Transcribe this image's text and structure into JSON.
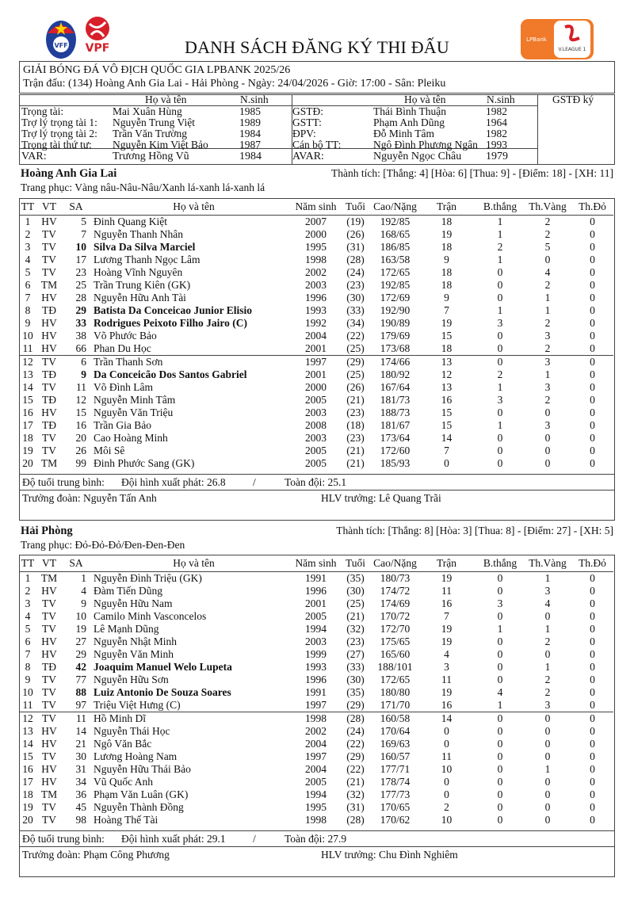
{
  "logos": {
    "left": [
      "VFF",
      "VPF"
    ],
    "right": "V.League 1 LPBank"
  },
  "colors": {
    "vff_blue": "#1f3f9a",
    "vpf_red": "#d7202a",
    "vleague_orange": "#f07a2a",
    "border": "#444444"
  },
  "title": "DANH SÁCH ĐĂNG KÝ THI ĐẤU",
  "competition": "GIẢI BÓNG ĐÁ VÔ ĐỊCH QUỐC GIA LPBANK 2025/26",
  "match": "Trận đấu: (134) Hoàng Anh Gia Lai - Hải Phòng - Ngày: 24/04/2026 - Giờ: 17:00 - Sân: Pleiku",
  "officials": {
    "headers": {
      "name": "Họ và tên",
      "year": "N.sinh",
      "name2": "Họ và tên",
      "year2": "N.sinh",
      "sign": "GSTĐ ký"
    },
    "rows": [
      [
        "Trọng tài:",
        "Mai Xuân Hùng",
        "1985",
        "GSTĐ:",
        "Thái Bình Thuận",
        "1982"
      ],
      [
        "Trợ lý trọng tài 1:",
        "Nguyễn Trung Việt",
        "1989",
        "GSTT:",
        "Phạm Anh Dũng",
        "1964"
      ],
      [
        "Trợ lý trọng tài 2:",
        "Trần Văn Trường",
        "1984",
        "ĐPV:",
        "Đỗ Minh Tâm",
        "1982"
      ],
      [
        "Trọng tài thứ tư:",
        "Nguyễn Kim Việt Bảo",
        "1987",
        "Cán bộ TT:",
        "Ngô Đình Phương Ngân",
        "1993"
      ],
      [
        "VAR:",
        "Trương Hồng Vũ",
        "1984",
        "AVAR:",
        "Nguyễn Ngọc Châu",
        "1979"
      ]
    ]
  },
  "columns": [
    "TT",
    "VT",
    "SA",
    "Họ và tên",
    "Năm sinh",
    "Tuổi",
    "Cao/Nặng",
    "Trận",
    "B.thắng",
    "Th.Vàng",
    "Th.Đỏ"
  ],
  "teams": [
    {
      "name": "Hoàng Anh Gia Lai",
      "record": "Thành tích: [Thắng: 4] [Hòa: 6] [Thua: 9] - [Điểm: 18] - [XH: 11]",
      "kit": "Trang phục: Vàng nâu-Nâu-Nâu/Xanh lá-xanh lá-xanh lá",
      "players": [
        {
          "cells": [
            "1",
            "HV",
            "5",
            "Đinh Quang Kiệt",
            "2007",
            "(19)",
            "192/85",
            "18",
            "1",
            "2",
            "0"
          ],
          "bold": false
        },
        {
          "cells": [
            "2",
            "TV",
            "7",
            "Nguyễn Thanh Nhân",
            "2000",
            "(26)",
            "168/65",
            "19",
            "1",
            "2",
            "0"
          ],
          "bold": false
        },
        {
          "cells": [
            "3",
            "TV",
            "10",
            "Silva Da Silva Marciel",
            "1995",
            "(31)",
            "186/85",
            "18",
            "2",
            "5",
            "0"
          ],
          "bold": true
        },
        {
          "cells": [
            "4",
            "TV",
            "17",
            "Lương Thanh Ngọc Lâm",
            "1998",
            "(28)",
            "163/58",
            "9",
            "1",
            "0",
            "0"
          ],
          "bold": false
        },
        {
          "cells": [
            "5",
            "TV",
            "23",
            "Hoàng Vĩnh Nguyên",
            "2002",
            "(24)",
            "172/65",
            "18",
            "0",
            "4",
            "0"
          ],
          "bold": false
        },
        {
          "cells": [
            "6",
            "TM",
            "25",
            "Trần Trung Kiên (GK)",
            "2003",
            "(23)",
            "192/85",
            "18",
            "0",
            "2",
            "0"
          ],
          "bold": false
        },
        {
          "cells": [
            "7",
            "HV",
            "28",
            "Nguyễn Hữu Anh Tài",
            "1996",
            "(30)",
            "172/69",
            "9",
            "0",
            "1",
            "0"
          ],
          "bold": false
        },
        {
          "cells": [
            "8",
            "TĐ",
            "29",
            "Batista Da Conceicao Junior Elisio",
            "1993",
            "(33)",
            "192/90",
            "7",
            "1",
            "1",
            "0"
          ],
          "bold": true
        },
        {
          "cells": [
            "9",
            "HV",
            "33",
            "Rodrigues Peixoto Filho Jairo (C)",
            "1992",
            "(34)",
            "190/89",
            "19",
            "3",
            "2",
            "0"
          ],
          "bold": true
        },
        {
          "cells": [
            "10",
            "HV",
            "38",
            "Võ Phước Bảo",
            "2004",
            "(22)",
            "179/69",
            "15",
            "0",
            "3",
            "0"
          ],
          "bold": false
        },
        {
          "cells": [
            "11",
            "HV",
            "66",
            "Phan Du Học",
            "2001",
            "(25)",
            "173/68",
            "18",
            "0",
            "2",
            "0"
          ],
          "bold": false
        },
        {
          "cells": [
            "12",
            "TV",
            "6",
            "Trần Thanh Sơn",
            "1997",
            "(29)",
            "174/66",
            "13",
            "0",
            "3",
            "0"
          ],
          "bold": false
        },
        {
          "cells": [
            "13",
            "TĐ",
            "9",
            "Da Conceicão Dos Santos Gabriel",
            "2001",
            "(25)",
            "180/92",
            "12",
            "2",
            "1",
            "0"
          ],
          "bold": true
        },
        {
          "cells": [
            "14",
            "TV",
            "11",
            "Võ Đình Lâm",
            "2000",
            "(26)",
            "167/64",
            "13",
            "1",
            "3",
            "0"
          ],
          "bold": false
        },
        {
          "cells": [
            "15",
            "TĐ",
            "12",
            "Nguyễn Minh Tâm",
            "2005",
            "(21)",
            "181/73",
            "16",
            "3",
            "2",
            "0"
          ],
          "bold": false
        },
        {
          "cells": [
            "16",
            "HV",
            "15",
            "Nguyễn Văn Triệu",
            "2003",
            "(23)",
            "188/73",
            "15",
            "0",
            "0",
            "0"
          ],
          "bold": false
        },
        {
          "cells": [
            "17",
            "TĐ",
            "16",
            "Trần Gia Bảo",
            "2008",
            "(18)",
            "181/67",
            "15",
            "1",
            "3",
            "0"
          ],
          "bold": false
        },
        {
          "cells": [
            "18",
            "TV",
            "20",
            "Cao Hoàng Minh",
            "2003",
            "(23)",
            "173/64",
            "14",
            "0",
            "0",
            "0"
          ],
          "bold": false
        },
        {
          "cells": [
            "19",
            "TV",
            "26",
            "Môi Sê",
            "2005",
            "(21)",
            "172/60",
            "7",
            "0",
            "0",
            "0"
          ],
          "bold": false
        },
        {
          "cells": [
            "20",
            "TM",
            "99",
            "Đinh Phước Sang (GK)",
            "2005",
            "(21)",
            "185/93",
            "0",
            "0",
            "0",
            "0"
          ],
          "bold": false
        }
      ],
      "avg_label": "Độ tuổi trung bình:",
      "avg_starting": "Đội hình xuất phát: 26.8",
      "avg_sep": "/",
      "avg_all": "Toàn đội: 25.1",
      "manager": "Trưởng đoàn: Nguyễn Tấn Anh",
      "coach": "HLV trưởng: Lê Quang Trãi"
    },
    {
      "name": "Hải Phòng",
      "record": "Thành tích: [Thắng: 8] [Hòa: 3] [Thua: 8] - [Điểm: 27] - [XH: 5]",
      "kit": "Trang phục: Đỏ-Đỏ-Đỏ/Đen-Đen-Đen",
      "players": [
        {
          "cells": [
            "1",
            "TM",
            "1",
            "Nguyễn Đình Triệu (GK)",
            "1991",
            "(35)",
            "180/73",
            "19",
            "0",
            "1",
            "0"
          ],
          "bold": false
        },
        {
          "cells": [
            "2",
            "HV",
            "4",
            "Đàm Tiến Dũng",
            "1996",
            "(30)",
            "174/72",
            "11",
            "0",
            "3",
            "0"
          ],
          "bold": false
        },
        {
          "cells": [
            "3",
            "TV",
            "9",
            "Nguyễn Hữu Nam",
            "2001",
            "(25)",
            "174/69",
            "16",
            "3",
            "4",
            "0"
          ],
          "bold": false
        },
        {
          "cells": [
            "4",
            "TV",
            "10",
            "Camilo Minh Vasconcelos",
            "2005",
            "(21)",
            "170/72",
            "7",
            "0",
            "0",
            "0"
          ],
          "bold": false
        },
        {
          "cells": [
            "5",
            "TV",
            "19",
            "Lê Mạnh Dũng",
            "1994",
            "(32)",
            "172/70",
            "19",
            "1",
            "1",
            "0"
          ],
          "bold": false
        },
        {
          "cells": [
            "6",
            "HV",
            "27",
            "Nguyễn Nhật Minh",
            "2003",
            "(23)",
            "175/65",
            "19",
            "0",
            "2",
            "0"
          ],
          "bold": false
        },
        {
          "cells": [
            "7",
            "HV",
            "29",
            "Nguyễn Văn Minh",
            "1999",
            "(27)",
            "165/60",
            "4",
            "0",
            "0",
            "0"
          ],
          "bold": false
        },
        {
          "cells": [
            "8",
            "TĐ",
            "42",
            "Joaquim Manuel Welo Lupeta",
            "1993",
            "(33)",
            "188/101",
            "3",
            "0",
            "1",
            "0"
          ],
          "bold": true
        },
        {
          "cells": [
            "9",
            "TV",
            "77",
            "Nguyễn Hữu Sơn",
            "1996",
            "(30)",
            "172/65",
            "11",
            "0",
            "2",
            "0"
          ],
          "bold": false
        },
        {
          "cells": [
            "10",
            "TV",
            "88",
            "Luiz Antonio De Souza Soares",
            "1991",
            "(35)",
            "180/80",
            "19",
            "4",
            "2",
            "0"
          ],
          "bold": true
        },
        {
          "cells": [
            "11",
            "TV",
            "97",
            "Triệu Việt Hưng (C)",
            "1997",
            "(29)",
            "171/70",
            "16",
            "1",
            "3",
            "0"
          ],
          "bold": false
        },
        {
          "cells": [
            "12",
            "TV",
            "11",
            "Hồ Minh Dĩ",
            "1998",
            "(28)",
            "160/58",
            "14",
            "0",
            "0",
            "0"
          ],
          "bold": false
        },
        {
          "cells": [
            "13",
            "HV",
            "14",
            "Nguyễn Thái Học",
            "2002",
            "(24)",
            "170/64",
            "0",
            "0",
            "0",
            "0"
          ],
          "bold": false
        },
        {
          "cells": [
            "14",
            "HV",
            "21",
            "Ngô Văn Bắc",
            "2004",
            "(22)",
            "169/63",
            "0",
            "0",
            "0",
            "0"
          ],
          "bold": false
        },
        {
          "cells": [
            "15",
            "TV",
            "30",
            "Lương Hoàng Nam",
            "1997",
            "(29)",
            "160/57",
            "11",
            "0",
            "0",
            "0"
          ],
          "bold": false
        },
        {
          "cells": [
            "16",
            "HV",
            "31",
            "Nguyễn Hữu Thái Bảo",
            "2004",
            "(22)",
            "177/71",
            "10",
            "0",
            "1",
            "0"
          ],
          "bold": false
        },
        {
          "cells": [
            "17",
            "HV",
            "34",
            "Vũ Quốc Anh",
            "2005",
            "(21)",
            "178/74",
            "0",
            "0",
            "0",
            "0"
          ],
          "bold": false
        },
        {
          "cells": [
            "18",
            "TM",
            "36",
            "Phạm Văn Luân (GK)",
            "1994",
            "(32)",
            "177/73",
            "0",
            "0",
            "0",
            "0"
          ],
          "bold": false
        },
        {
          "cells": [
            "19",
            "TV",
            "45",
            "Nguyễn Thành Đồng",
            "1995",
            "(31)",
            "170/65",
            "2",
            "0",
            "0",
            "0"
          ],
          "bold": false
        },
        {
          "cells": [
            "20",
            "TV",
            "98",
            "Hoàng Thế Tài",
            "1998",
            "(28)",
            "170/62",
            "10",
            "0",
            "0",
            "0"
          ],
          "bold": false
        }
      ],
      "avg_label": "Độ tuổi trung bình:",
      "avg_starting": "Đội hình xuất phát: 29.1",
      "avg_sep": "/",
      "avg_all": "Toàn đội: 27.9",
      "manager": "Trưởng đoàn: Phạm Công Phương",
      "coach": "HLV trưởng:  Chu Đình Nghiêm"
    }
  ]
}
